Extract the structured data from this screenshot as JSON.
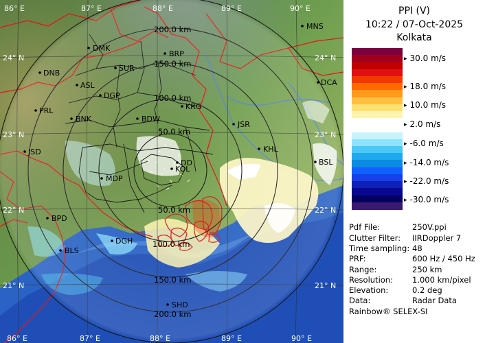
{
  "map": {
    "longitude_labels": [
      "86° E",
      "87° E",
      "88° E",
      "89° E",
      "90° E"
    ],
    "latitude_labels": [
      "24° N",
      "23° N",
      "22° N",
      "21° N"
    ],
    "range_rings": [
      "200.0 km",
      "150.0 km",
      "100.0 km",
      "50.0 km",
      "50.0 km",
      "100.0 km",
      "150.0 km",
      "200.0 km"
    ],
    "stations": [
      {
        "code": "MNS"
      },
      {
        "code": "DMK"
      },
      {
        "code": "BRP"
      },
      {
        "code": "DNB"
      },
      {
        "code": "SUR"
      },
      {
        "code": "ASL"
      },
      {
        "code": "DCA"
      },
      {
        "code": "DGP"
      },
      {
        "code": "KRG"
      },
      {
        "code": "PRL"
      },
      {
        "code": "BNK"
      },
      {
        "code": "BDW"
      },
      {
        "code": "JSR"
      },
      {
        "code": "KHL"
      },
      {
        "code": "JSD"
      },
      {
        "code": "DD"
      },
      {
        "code": "KOL"
      },
      {
        "code": "BSL"
      },
      {
        "code": "MDP"
      },
      {
        "code": "BPD"
      },
      {
        "code": "DGH"
      },
      {
        "code": "BLS"
      },
      {
        "code": "SHD"
      }
    ]
  },
  "header": {
    "product": "PPI (V)",
    "datetime": "10:22 / 07-Oct-2025",
    "site": "Kolkata"
  },
  "legend": {
    "labels": [
      "30.0 m/s",
      "18.0 m/s",
      "10.0 m/s",
      "2.0 m/s",
      "-6.0 m/s",
      "-14.0 m/s",
      "-22.0 m/s",
      "-30.0 m/s"
    ],
    "colors": [
      "#7a0040",
      "#a0001e",
      "#c00000",
      "#e01010",
      "#f23a00",
      "#ff6a00",
      "#ff9a1a",
      "#ffc040",
      "#ffe070",
      "#fff3b0",
      "#ffffff",
      "#ffffff",
      "#c9f2ff",
      "#8ee4ff",
      "#4cc8f5",
      "#20a8ee",
      "#0a8ce0",
      "#1060ff",
      "#1840e8",
      "#1020b8",
      "#080890",
      "#040060",
      "#3a1a70"
    ]
  },
  "info": [
    {
      "label": "Pdf File:",
      "value": "250V.ppi"
    },
    {
      "label": "Clutter Filter:",
      "value": "IIRDoppler 7"
    },
    {
      "label": "Time sampling:",
      "value": "48"
    },
    {
      "label": "PRF:",
      "value": "600 Hz / 450 Hz"
    },
    {
      "label": "Range:",
      "value": "250 km"
    },
    {
      "label": "Resolution:",
      "value": "1.000 km/pixel"
    },
    {
      "label": "Elevation:",
      "value": "0.2 deg"
    },
    {
      "label": "Data:",
      "value": "Radar Data"
    }
  ],
  "footer": "Rainbow® SELEX-SI"
}
